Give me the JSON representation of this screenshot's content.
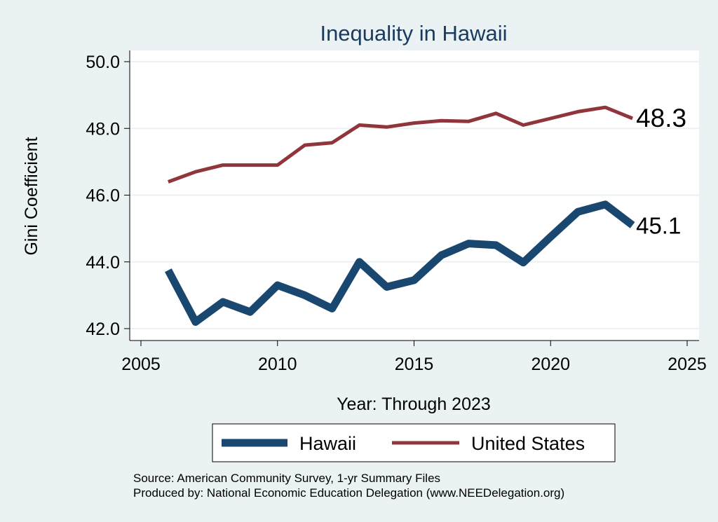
{
  "chart_data": {
    "type": "line",
    "title": "Inequality in Hawaii",
    "xlabel": "Year: Through 2023",
    "ylabel": "Gini Coefficient",
    "xlim": [
      2005,
      2025
    ],
    "ylim": [
      42.0,
      50.0
    ],
    "xticks": [
      2005,
      2010,
      2015,
      2020,
      2025
    ],
    "yticks": [
      42.0,
      44.0,
      46.0,
      48.0,
      50.0
    ],
    "yticklabels": [
      "42.0",
      "44.0",
      "46.0",
      "48.0",
      "50.0"
    ],
    "grid": true,
    "legend_position": "bottom",
    "series": [
      {
        "name": "Hawaii",
        "color": "#1a476f",
        "x": [
          2006,
          2007,
          2008,
          2009,
          2010,
          2011,
          2012,
          2013,
          2014,
          2015,
          2016,
          2017,
          2018,
          2019,
          2020,
          2021,
          2022,
          2023
        ],
        "values": [
          43.75,
          42.2,
          42.8,
          42.5,
          43.3,
          43.0,
          42.6,
          44.0,
          43.25,
          43.45,
          44.2,
          44.55,
          44.5,
          43.98,
          44.75,
          45.5,
          45.72,
          45.1
        ],
        "end_label": "45.1"
      },
      {
        "name": "United States",
        "color": "#90353b",
        "x": [
          2006,
          2007,
          2008,
          2009,
          2010,
          2011,
          2012,
          2013,
          2014,
          2015,
          2016,
          2017,
          2018,
          2019,
          2020,
          2021,
          2022,
          2023
        ],
        "values": [
          46.4,
          46.7,
          46.9,
          46.9,
          46.9,
          47.5,
          47.57,
          48.1,
          48.04,
          48.16,
          48.23,
          48.21,
          48.45,
          48.1,
          48.3,
          48.5,
          48.63,
          48.3
        ],
        "end_label": "48.3"
      }
    ]
  },
  "footer": {
    "source": "Source: American Community Survey, 1-yr Summary Files",
    "producer": "Produced by: National Economic Education Delegation (www.NEEDelegation.org)"
  }
}
